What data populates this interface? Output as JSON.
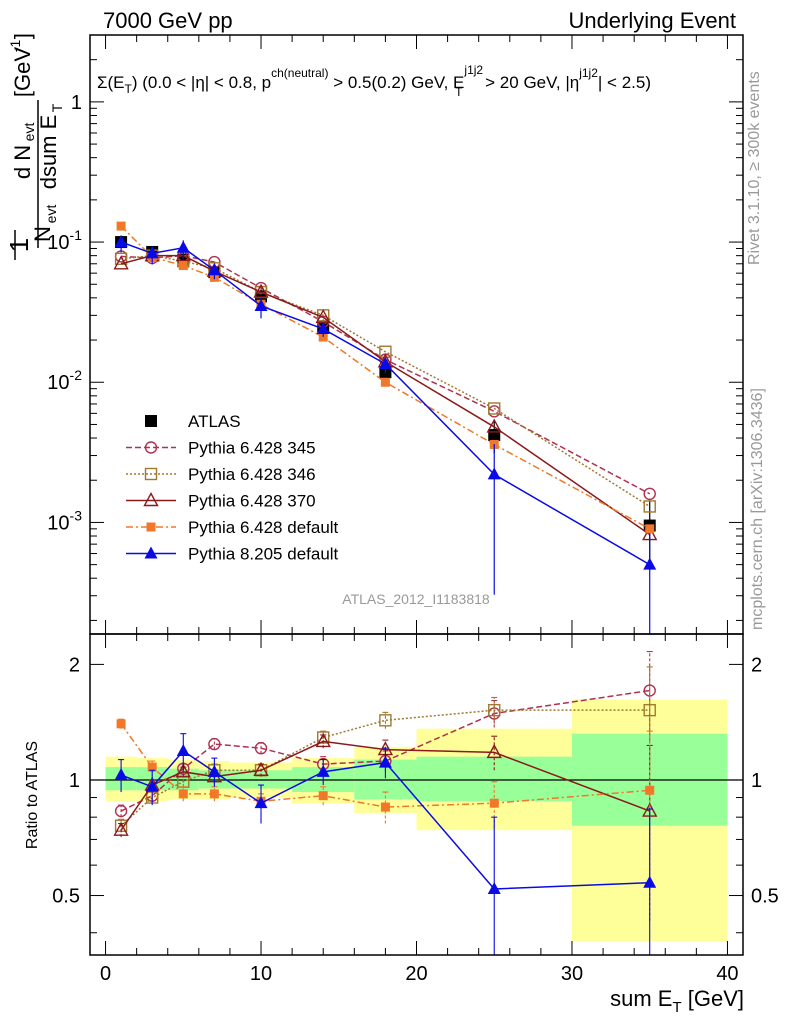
{
  "header": {
    "left": "7000 GeV pp",
    "right": "Underlying Event"
  },
  "side_labels": {
    "rivet": "Rivet 3.1.10, ≥ 300k events",
    "mcplots": "mcplots.cern.ch [arXiv:1306.3436]"
  },
  "chart_data": {
    "type": "line",
    "title": "Σ(E_T) (0.0 < |η| < 0.8, p^ch(neutral) > 0.5(0.2) GeV, E_T^j1j2 > 20 GeV, |η^j1j2| < 2.5)",
    "title_parts": {
      "lead": "Σ(E",
      "lead_sub": "T",
      "mid": ") (0.0 < |η| < 0.8, p",
      "mid_sup": "ch(neutral)",
      "mid2": " > 0.5(0.2) GeV, E",
      "mid2_sup": "j1j2",
      "mid2_sub": "T",
      "mid3": " > 20 GeV, |η",
      "mid3_sup": "j1j2",
      "tail": "| < 2.5)"
    },
    "analysis_id": "ATLAS_2012_I1183818",
    "xlabel": "sum E_T [GeV]",
    "xlabel_parts": {
      "main": "sum E",
      "sub": "T",
      "unit": " [GeV]"
    },
    "ylabel": "1/N_evt dN_evt/dsum E_T [GeV^-1]",
    "ylabel_parts": {
      "one": "1",
      "nevt": "N",
      "evt": "evt",
      "dnevt": "d N",
      "dsum": "dsum E",
      "T": "T",
      "unit": "[GeV",
      "exp": "-1",
      "close": "]"
    },
    "ratio_ylabel": "Ratio to ATLAS",
    "xlim": [
      -1,
      41
    ],
    "ylim": [
      0.00016,
      3
    ],
    "ratio_ylim": [
      0.35,
      2.4
    ],
    "x_ticks": [
      "0",
      "10",
      "20",
      "30",
      "40"
    ],
    "y_ticks": [
      {
        "base": "10",
        "exp": "-3"
      },
      {
        "base": "10",
        "exp": "-2"
      },
      {
        "base": "10",
        "exp": "-1"
      },
      {
        "base": "1",
        "exp": ""
      }
    ],
    "ratio_ticks": [
      "0.5",
      "1",
      "2"
    ],
    "bands": [
      {
        "x0": 0,
        "x1": 2,
        "green": [
          0.94,
          1.08
        ],
        "yellow": [
          0.88,
          1.15
        ]
      },
      {
        "x0": 2,
        "x1": 4,
        "green": [
          0.94,
          1.08
        ],
        "yellow": [
          0.88,
          1.14
        ]
      },
      {
        "x0": 4,
        "x1": 6,
        "green": [
          0.94,
          1.07
        ],
        "yellow": [
          0.89,
          1.13
        ]
      },
      {
        "x0": 6,
        "x1": 8,
        "green": [
          0.95,
          1.06
        ],
        "yellow": [
          0.89,
          1.12
        ]
      },
      {
        "x0": 8,
        "x1": 12,
        "green": [
          0.95,
          1.06
        ],
        "yellow": [
          0.9,
          1.11
        ]
      },
      {
        "x0": 12,
        "x1": 16,
        "green": [
          0.93,
          1.08
        ],
        "yellow": [
          0.87,
          1.14
        ]
      },
      {
        "x0": 16,
        "x1": 20,
        "green": [
          0.89,
          1.13
        ],
        "yellow": [
          0.82,
          1.22
        ]
      },
      {
        "x0": 20,
        "x1": 30,
        "green": [
          0.88,
          1.15
        ],
        "yellow": [
          0.74,
          1.36
        ]
      },
      {
        "x0": 30,
        "x1": 40,
        "green": [
          0.76,
          1.32
        ],
        "yellow": [
          0.38,
          1.62
        ]
      }
    ],
    "x": [
      1,
      3,
      5,
      7,
      10,
      14,
      18,
      25,
      35
    ],
    "series": [
      {
        "name": "ATLAS",
        "legend": "ATLAS",
        "color": "#000000",
        "marker": "square-filled",
        "dash": "",
        "line": false,
        "values": [
          0.1,
          0.085,
          0.075,
          0.061,
          0.041,
          0.025,
          0.0118,
          0.0042,
          0.00095
        ],
        "ratio": [
          1,
          1,
          1,
          1,
          1,
          1,
          1,
          1,
          1
        ],
        "ratio_err": [
          0,
          0,
          0,
          0,
          0,
          0,
          0,
          0,
          0
        ]
      },
      {
        "name": "Pythia 6.428 345",
        "legend": "Pythia 6.428 345",
        "color": "#b03050",
        "marker": "circle-open",
        "dash": "6,3",
        "line": true,
        "values": [
          0.079,
          0.077,
          0.08,
          0.072,
          0.047,
          0.027,
          0.0145,
          0.0062,
          0.0016
        ],
        "ratio": [
          0.83,
          0.91,
          1.07,
          1.24,
          1.21,
          1.1,
          1.12,
          1.49,
          1.71
        ],
        "ratio_err": [
          0.03,
          0.03,
          0.03,
          0.04,
          0.04,
          0.05,
          0.07,
          0.12,
          0.45
        ]
      },
      {
        "name": "Pythia 6.428 346",
        "legend": "Pythia 6.428 346",
        "color": "#a07830",
        "marker": "square-open",
        "dash": "2,2",
        "line": true,
        "values": [
          0.076,
          0.08,
          0.073,
          0.065,
          0.044,
          0.03,
          0.0165,
          0.0065,
          0.0013
        ],
        "ratio": [
          0.76,
          0.9,
          0.99,
          1.06,
          1.06,
          1.29,
          1.43,
          1.52,
          1.52
        ],
        "ratio_err": [
          0.03,
          0.03,
          0.03,
          0.04,
          0.04,
          0.05,
          0.07,
          0.12,
          0.45
        ]
      },
      {
        "name": "Pythia 6.428 370",
        "legend": "Pythia 6.428 370",
        "color": "#8b1a1a",
        "marker": "triangle-open",
        "dash": "",
        "line": true,
        "values": [
          0.07,
          0.08,
          0.08,
          0.062,
          0.044,
          0.029,
          0.014,
          0.0048,
          0.00082
        ],
        "ratio": [
          0.74,
          0.97,
          1.05,
          1.02,
          1.06,
          1.26,
          1.2,
          1.18,
          0.83
        ],
        "ratio_err": [
          0.03,
          0.03,
          0.03,
          0.04,
          0.04,
          0.05,
          0.07,
          0.12,
          0.4
        ]
      },
      {
        "name": "Pythia 6.428 default",
        "legend": "Pythia 6.428 default",
        "color": "#f07828",
        "marker": "square-small",
        "dash": "7,3,2,3",
        "line": true,
        "values": [
          0.13,
          0.078,
          0.068,
          0.056,
          0.036,
          0.021,
          0.01,
          0.0036,
          0.0009
        ],
        "ratio": [
          1.4,
          1.08,
          0.92,
          0.92,
          0.88,
          0.91,
          0.85,
          0.87,
          0.94
        ],
        "ratio_err": [
          0.04,
          0.04,
          0.04,
          0.04,
          0.04,
          0.05,
          0.08,
          0.12,
          0.4
        ]
      },
      {
        "name": "Pythia 8.205 default",
        "legend": "Pythia 8.205 default",
        "color": "#0a0ae6",
        "marker": "triangle-filled",
        "dash": "",
        "line": true,
        "values": [
          0.1,
          0.083,
          0.091,
          0.063,
          0.035,
          0.024,
          0.0135,
          0.0022,
          0.0005
        ],
        "ratio": [
          1.03,
          0.96,
          1.19,
          1.05,
          0.87,
          1.05,
          1.11,
          0.52,
          0.54
        ],
        "ratio_err": [
          0.1,
          0.1,
          0.13,
          0.09,
          0.1,
          0.08,
          0.1,
          0.28,
          0.3
        ]
      }
    ],
    "main_err_lo": [
      0.009,
      0.008,
      0.009,
      0.007,
      0.005,
      0.003,
      0.0022,
      0.0011,
      0.00049
    ],
    "main_err_hi": [
      0.009,
      0.008,
      0.011,
      0.007,
      0.005,
      0.003,
      0.0022,
      0.0011,
      0.00049
    ]
  }
}
